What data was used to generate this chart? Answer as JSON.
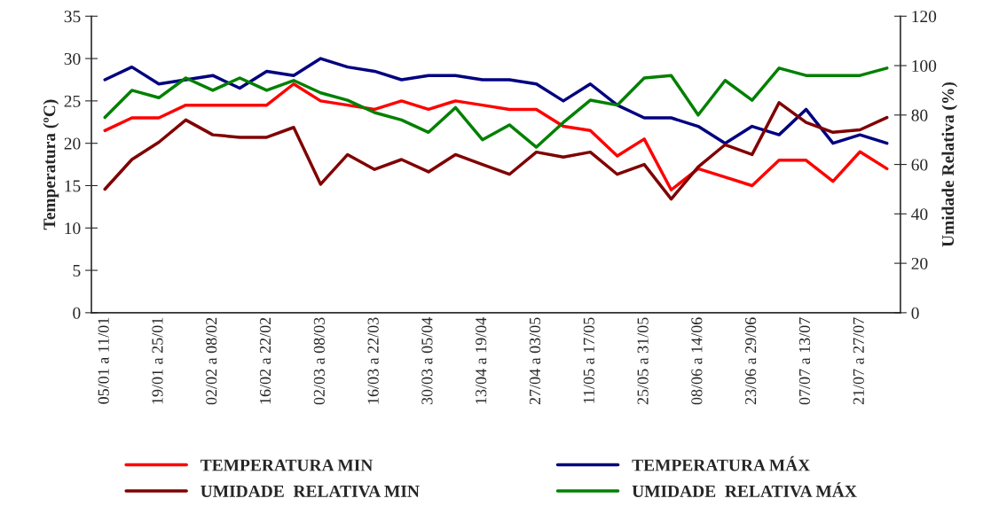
{
  "chart_data": {
    "type": "line",
    "categories": [
      "05/01 a 11/01",
      null,
      "19/01 a 25/01",
      null,
      "02/02 a 08/02",
      null,
      "16/02 a 22/02",
      null,
      "02/03 a 08/03",
      null,
      "16/03 a 22/03",
      null,
      "30/03 a 05/04",
      null,
      "13/04 a 19/04",
      null,
      "27/04 a 03/05",
      null,
      "11/05 a 17/05",
      null,
      "25/05 a 31/05",
      null,
      "08/06 a 14/06",
      null,
      "23/06 a 29/06",
      null,
      "07/07 a 13/07",
      null,
      "21/07 a 27/07",
      null
    ],
    "series": [
      {
        "name": "TEMPERATURA MIN",
        "color": "#ff0000",
        "values": [
          21.5,
          23,
          23,
          24.5,
          24.5,
          24.5,
          24.5,
          27,
          25,
          24.5,
          24,
          25,
          24,
          25,
          24.5,
          24,
          24,
          22,
          21.5,
          18.5,
          20.5,
          14.5,
          17,
          16,
          15,
          18,
          18,
          15.5,
          19,
          17
        ]
      },
      {
        "name": "TEMPERATURA MÁX",
        "color": "#000080",
        "values": [
          27.5,
          29,
          27,
          27.5,
          28,
          26.5,
          28.5,
          28,
          30,
          29,
          28.5,
          27.5,
          28,
          28,
          27.5,
          27.5,
          27,
          25,
          27,
          24.5,
          23,
          23,
          22,
          20,
          22,
          21,
          24,
          20,
          21,
          20
        ]
      },
      {
        "name": "UMIDADE  RELATIVA MIN",
        "color": "#800000",
        "axis": "y2",
        "values": [
          50,
          62,
          69,
          78,
          72,
          71,
          71,
          75,
          52,
          64,
          58,
          62,
          57,
          64,
          60,
          56,
          65,
          63,
          65,
          56,
          60,
          46,
          59,
          68,
          64,
          85,
          77,
          73,
          74,
          79
        ]
      },
      {
        "name": "UMIDADE  RELATIVA MÁX",
        "color": "#008000",
        "axis": "y2",
        "values": [
          79,
          90,
          87,
          95,
          90,
          95,
          90,
          94,
          89,
          86,
          81,
          78,
          73,
          83,
          70,
          76,
          67,
          77,
          86,
          84,
          95,
          96,
          80,
          94,
          86,
          99,
          96,
          96,
          96,
          99
        ]
      }
    ],
    "ylabel": "Temperatura (ºC)",
    "y2label": "Umidade Relativa (%)",
    "ylim": [
      0,
      35
    ],
    "yticks": [
      0,
      5,
      10,
      15,
      20,
      25,
      30,
      35
    ],
    "y2lim": [
      0,
      120
    ],
    "y2ticks": [
      0,
      20,
      40,
      60,
      80,
      100,
      120
    ],
    "grid": false,
    "legend": "bottom",
    "marker": "none",
    "line_style": "solid"
  }
}
